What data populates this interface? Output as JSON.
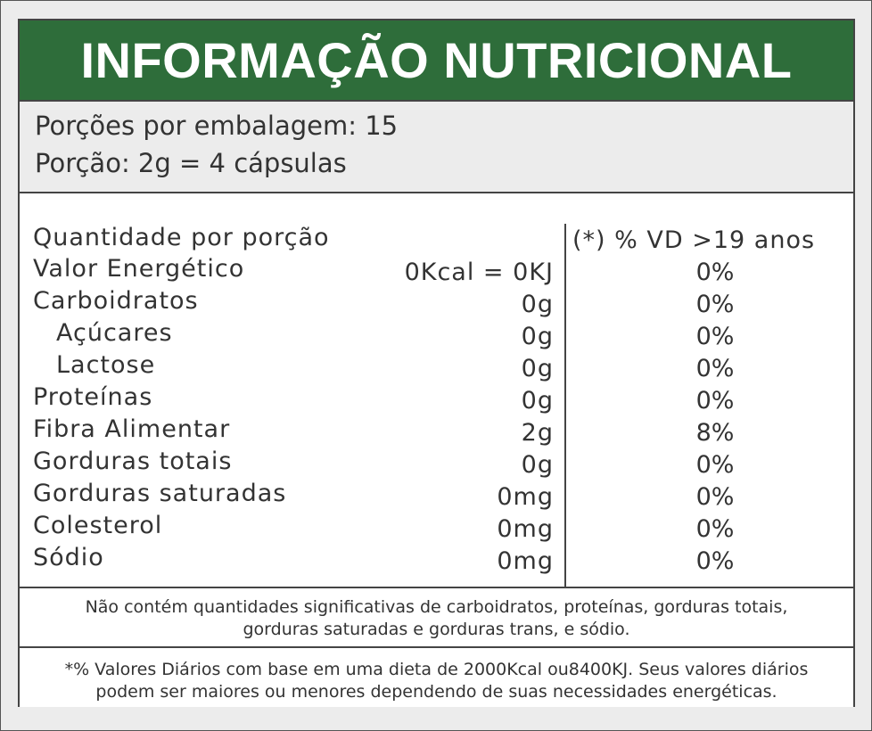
{
  "title": "INFORMAÇÃO NUTRICIONAL",
  "serving": {
    "per_package": "Porções por embalagem: 15",
    "portion": "Porção: 2g = 4 cápsulas"
  },
  "table": {
    "header_left": "Quantidade por porção",
    "header_right": "(*) % VD  >19 anos",
    "rows": [
      {
        "name": "Valor Energético",
        "amount": "0Kcal = 0KJ",
        "vd": "0%"
      },
      {
        "name": "Carboidratos",
        "amount": "0g",
        "vd": "0%"
      },
      {
        "name": "Açúcares",
        "amount": "0g",
        "vd": "0%"
      },
      {
        "name": "Lactose",
        "amount": "0g",
        "vd": "0%"
      },
      {
        "name": "Proteínas",
        "amount": "0g",
        "vd": "0%"
      },
      {
        "name": "Fibra Alimentar",
        "amount": "2g",
        "vd": "8%"
      },
      {
        "name": "Gorduras totais",
        "amount": "0g",
        "vd": "0%"
      },
      {
        "name": "Gorduras saturadas",
        "amount": "0mg",
        "vd": "0%"
      },
      {
        "name": "Colesterol",
        "amount": "0mg",
        "vd": "0%"
      },
      {
        "name": "Sódio",
        "amount": "0mg",
        "vd": "0%"
      }
    ]
  },
  "notes": {
    "not_significant_line1": "Não contém quantidades significativas de carboidratos, proteínas, gorduras totais,",
    "not_significant_line2": "gorduras saturadas e gorduras trans, e sódio.",
    "daily_values_line1": "*% Valores Diários com base em uma dieta de 2000Kcal ou8400KJ. Seus valores diários",
    "daily_values_line2": "podem ser maiores ou menores dependendo de suas necessidades energéticas."
  },
  "colors": {
    "header_green": "#2e6d3a",
    "serving_bg": "#ececec",
    "text": "#333333"
  }
}
